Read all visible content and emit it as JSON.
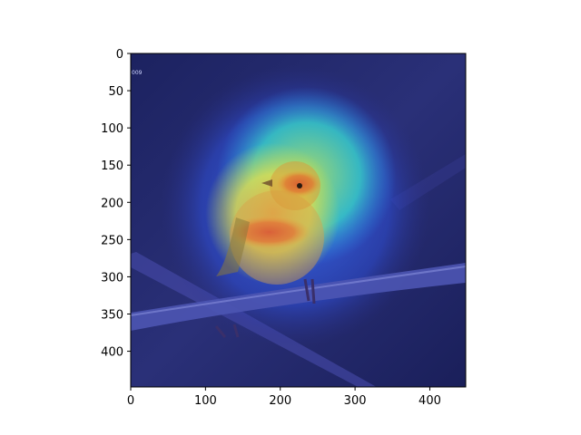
{
  "chart_data": {
    "type": "heatmap",
    "title": "",
    "xlabel": "",
    "ylabel": "",
    "xlim": [
      0,
      448
    ],
    "ylim": [
      448,
      0
    ],
    "x_ticks": [
      0,
      100,
      200,
      300,
      400
    ],
    "y_ticks": [
      0,
      50,
      100,
      150,
      200,
      250,
      300,
      350,
      400
    ],
    "x_tick_labels": [
      "0",
      "100",
      "200",
      "300",
      "400"
    ],
    "y_tick_labels": [
      "0",
      "50",
      "100",
      "150",
      "200",
      "250",
      "300",
      "350",
      "400"
    ],
    "grid": false,
    "colormap": "jet",
    "background_image": "bird-on-branch-photo",
    "image_text": "009",
    "activation_regions": [
      {
        "level": "low",
        "cx": 220,
        "cy": 205,
        "rx": 180,
        "ry": 190
      },
      {
        "level": "medium",
        "cx": 235,
        "cy": 165,
        "rx": 120,
        "ry": 120
      },
      {
        "level": "medium-high",
        "cx": 190,
        "cy": 215,
        "rx": 90,
        "ry": 95
      },
      {
        "level": "high",
        "cx": 185,
        "cy": 240,
        "rx": 55,
        "ry": 22
      },
      {
        "level": "high",
        "cx": 225,
        "cy": 175,
        "rx": 30,
        "ry": 18
      }
    ]
  },
  "colors": {
    "background_navy": "#1f2466",
    "low": "#2f5cff",
    "medium": "#32e0c0",
    "medium_high": "#e6e04a",
    "high": "#e23a2a",
    "axis": "#000000"
  }
}
